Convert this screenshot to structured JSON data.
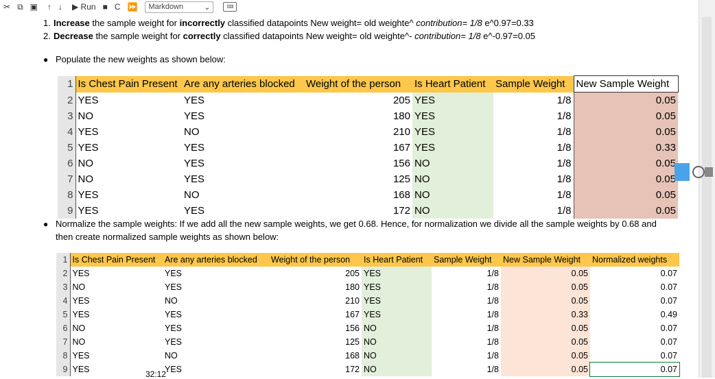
{
  "toolbar": {
    "run_label": "Run",
    "cell_type": "Markdown"
  },
  "step_list": [
    {
      "num": "1.",
      "verb": "Increase",
      "pre": " the sample weight for ",
      "bold2": "incorrectly",
      "post": " classified datapoints New weight= old weighte^ ",
      "formula": "contribution= 1/8",
      "tail": " e^0.97=0.33"
    },
    {
      "num": "2.",
      "verb": "Decrease",
      "pre": " the sample weight for ",
      "bold2": "correctly",
      "post": " classified datapoints New weight= old weighte^- ",
      "formula": "contribution= 1/8",
      "tail": " e^-0.97=0.05"
    }
  ],
  "bullet1": "Populate the new weights as shown below:",
  "bullet2_line1": "Normalize the sample weights: If we add all the new sample weights, we get 0.68. Hence, for normalization we divide all the sample weights by 0.68 and",
  "bullet2_line2": "then create normalized sample weights as shown below:",
  "table1": {
    "headers": [
      "Is Chest Pain Present",
      "Are any arteries blocked",
      "Weight of the person",
      "Is Heart Patient",
      "Sample Weight",
      "New Sample Weight"
    ],
    "row_numbers": [
      "1",
      "2",
      "3",
      "4",
      "5",
      "6",
      "7",
      "8",
      "9"
    ],
    "rows": [
      [
        "YES",
        "YES",
        "205",
        "YES",
        "1/8",
        "0.05"
      ],
      [
        "NO",
        "YES",
        "180",
        "YES",
        "1/8",
        "0.05"
      ],
      [
        "YES",
        "NO",
        "210",
        "YES",
        "1/8",
        "0.05"
      ],
      [
        "YES",
        "YES",
        "167",
        "YES",
        "1/8",
        "0.33"
      ],
      [
        "NO",
        "YES",
        "156",
        "NO",
        "1/8",
        "0.05"
      ],
      [
        "NO",
        "YES",
        "125",
        "NO",
        "1/8",
        "0.05"
      ],
      [
        "YES",
        "NO",
        "168",
        "NO",
        "1/8",
        "0.05"
      ],
      [
        "YES",
        "YES",
        "172",
        "NO",
        "1/8",
        "0.05"
      ]
    ]
  },
  "table2": {
    "headers": [
      "Is Chest Pain Present",
      "Are any arteries blocked",
      "Weight of the person",
      "Is Heart Patient",
      "Sample Weight",
      "New Sample Weight",
      "Normalized weights"
    ],
    "row_numbers": [
      "1",
      "2",
      "3",
      "4",
      "5",
      "6",
      "7",
      "8",
      "9"
    ],
    "rows": [
      [
        "YES",
        "YES",
        "205",
        "YES",
        "1/8",
        "0.05",
        "0.07"
      ],
      [
        "NO",
        "YES",
        "180",
        "YES",
        "1/8",
        "0.05",
        "0.07"
      ],
      [
        "YES",
        "NO",
        "210",
        "YES",
        "1/8",
        "0.05",
        "0.07"
      ],
      [
        "YES",
        "YES",
        "167",
        "YES",
        "1/8",
        "0.33",
        "0.49"
      ],
      [
        "NO",
        "YES",
        "156",
        "NO",
        "1/8",
        "0.05",
        "0.07"
      ],
      [
        "NO",
        "YES",
        "125",
        "NO",
        "1/8",
        "0.05",
        "0.07"
      ],
      [
        "YES",
        "NO",
        "168",
        "NO",
        "1/8",
        "0.05",
        "0.07"
      ],
      [
        "YES",
        "YES",
        "172",
        "NO",
        "1/8",
        "0.05",
        "0.07"
      ]
    ]
  },
  "video_timestamp": "32:12"
}
